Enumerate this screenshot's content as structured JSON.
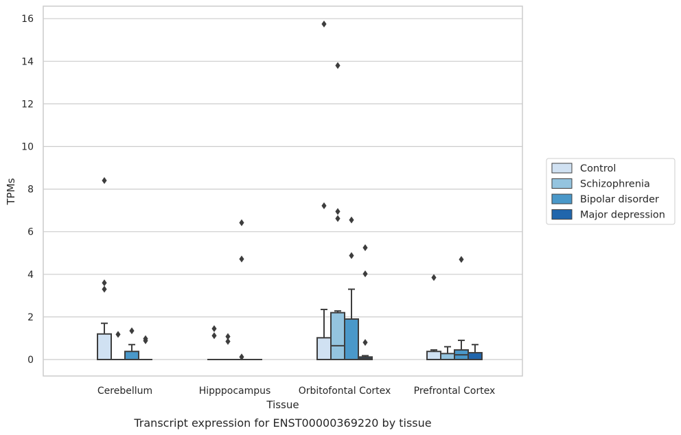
{
  "chart_data": {
    "type": "box",
    "xlabel": "Tissue",
    "ylabel": "TPMs",
    "caption": "Transcript expression for ENST00000369220 by tissue",
    "ylim": [
      -0.75,
      16.6
    ],
    "yticks": [
      "0",
      "2",
      "4",
      "6",
      "8",
      "10",
      "12",
      "14",
      "16"
    ],
    "grid": "horizontal",
    "legend_position": "right",
    "categories": [
      "Cerebellum",
      "Hipppocampus",
      "Orbitofontal Cortex",
      "Prefrontal Cortex"
    ],
    "series": [
      {
        "name": "Control",
        "color": "#d0e1f2",
        "boxes": [
          {
            "q1": 0,
            "median": 0,
            "q3": 1.2,
            "whislo": 0,
            "whishi": 1.7,
            "fliers": [
              3.6,
              3.3,
              8.4
            ]
          },
          {
            "q1": 0,
            "median": 0,
            "q3": 0,
            "whislo": 0,
            "whishi": 0,
            "fliers": [
              1.45,
              1.12
            ]
          },
          {
            "q1": 0,
            "median": 0,
            "q3": 1.02,
            "whislo": 0,
            "whishi": 2.35,
            "fliers": [
              15.75,
              7.22
            ]
          },
          {
            "q1": 0,
            "median": 0,
            "q3": 0.38,
            "whislo": 0,
            "whishi": 0.45,
            "fliers": [
              3.85
            ]
          }
        ]
      },
      {
        "name": "Schizophrenia",
        "color": "#94c4df",
        "boxes": [
          {
            "q1": 0,
            "median": 0,
            "q3": 0,
            "whislo": 0,
            "whishi": 0,
            "fliers": [
              1.18
            ]
          },
          {
            "q1": 0,
            "median": 0,
            "q3": 0,
            "whislo": 0,
            "whishi": 0,
            "fliers": [
              1.08,
              0.85
            ]
          },
          {
            "q1": 0,
            "median": 0.65,
            "q3": 2.2,
            "whislo": 0,
            "whishi": 2.28,
            "fliers": [
              13.8,
              6.95,
              6.62
            ]
          },
          {
            "q1": 0,
            "median": 0,
            "q3": 0.28,
            "whislo": 0,
            "whishi": 0.6,
            "fliers": []
          }
        ]
      },
      {
        "name": "Bipolar disorder",
        "color": "#4a98c9",
        "boxes": [
          {
            "q1": 0,
            "median": 0,
            "q3": 0.38,
            "whislo": 0,
            "whishi": 0.7,
            "fliers": [
              1.35
            ]
          },
          {
            "q1": 0,
            "median": 0,
            "q3": 0,
            "whislo": 0,
            "whishi": 0,
            "fliers": [
              6.42,
              4.72,
              0.12
            ]
          },
          {
            "q1": 0,
            "median": 0,
            "q3": 1.9,
            "whislo": 0,
            "whishi": 3.3,
            "fliers": [
              6.55,
              4.88
            ]
          },
          {
            "q1": 0,
            "median": 0.22,
            "q3": 0.45,
            "whislo": 0,
            "whishi": 0.9,
            "fliers": [
              4.7
            ]
          }
        ]
      },
      {
        "name": "Major depression",
        "color": "#2166ac",
        "boxes": [
          {
            "q1": 0,
            "median": 0,
            "q3": 0,
            "whislo": 0,
            "whishi": 0,
            "fliers": [
              0.98,
              0.88
            ]
          },
          {
            "q1": 0,
            "median": 0,
            "q3": 0,
            "whislo": 0,
            "whishi": 0,
            "fliers": []
          },
          {
            "q1": 0,
            "median": 0.05,
            "q3": 0.12,
            "whislo": 0,
            "whishi": 0.18,
            "fliers": [
              5.25,
              4.02,
              0.8
            ]
          },
          {
            "q1": 0,
            "median": 0,
            "q3": 0.32,
            "whislo": 0,
            "whishi": 0.7,
            "fliers": []
          }
        ]
      }
    ]
  }
}
